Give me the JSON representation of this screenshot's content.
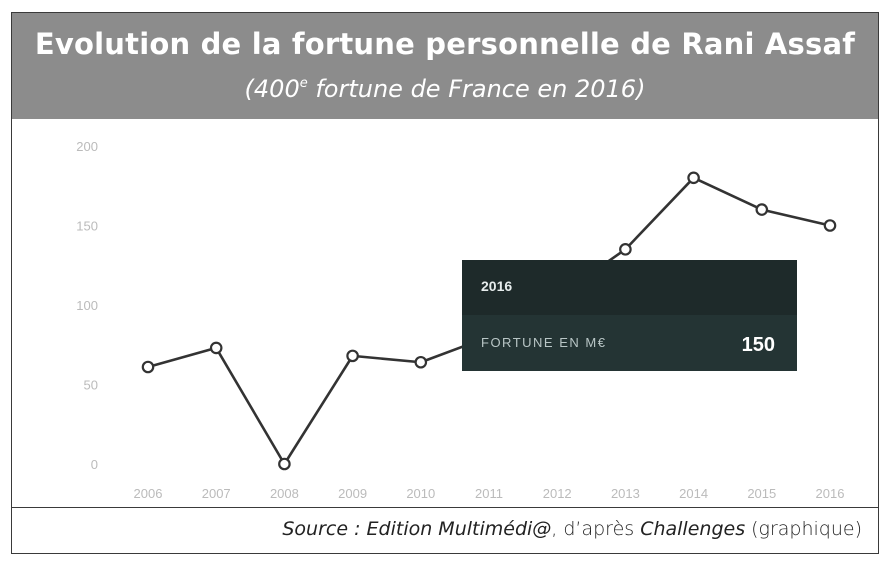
{
  "header": {
    "title": "Evolution de la fortune personnelle de Rani Assaf",
    "subtitle_pre": "(400",
    "subtitle_sup": "e",
    "subtitle_post": " fortune de France en 2016)"
  },
  "tooltip": {
    "year": "2016",
    "label": "FORTUNE EN M€",
    "value": "150"
  },
  "source": {
    "part1": "Source : Edition Multimédi@",
    "part2": ", d’après ",
    "part3": "Challenges",
    "part4": " (graphique)"
  },
  "chart_data": {
    "type": "line",
    "title": "Evolution de la fortune personnelle de Rani Assaf",
    "xlabel": "",
    "ylabel": "",
    "x": [
      "2006",
      "2007",
      "2008",
      "2009",
      "2010",
      "2011",
      "2012",
      "2013",
      "2014",
      "2015",
      "2016"
    ],
    "series": [
      {
        "values": [
          61,
          73,
          0,
          68,
          64,
          80,
          105,
          135,
          180,
          160,
          150
        ]
      }
    ],
    "yticks": [
      0,
      50,
      100,
      150,
      200
    ],
    "ylim": [
      0,
      200
    ],
    "grid": false,
    "legend": "none",
    "colors": {
      "line": "#333333",
      "marker_fill": "#ffffff",
      "axis_text": "#bbbbbb",
      "tooltip_bg": "#1e2a2a",
      "tooltip_row": "#243434"
    }
  }
}
